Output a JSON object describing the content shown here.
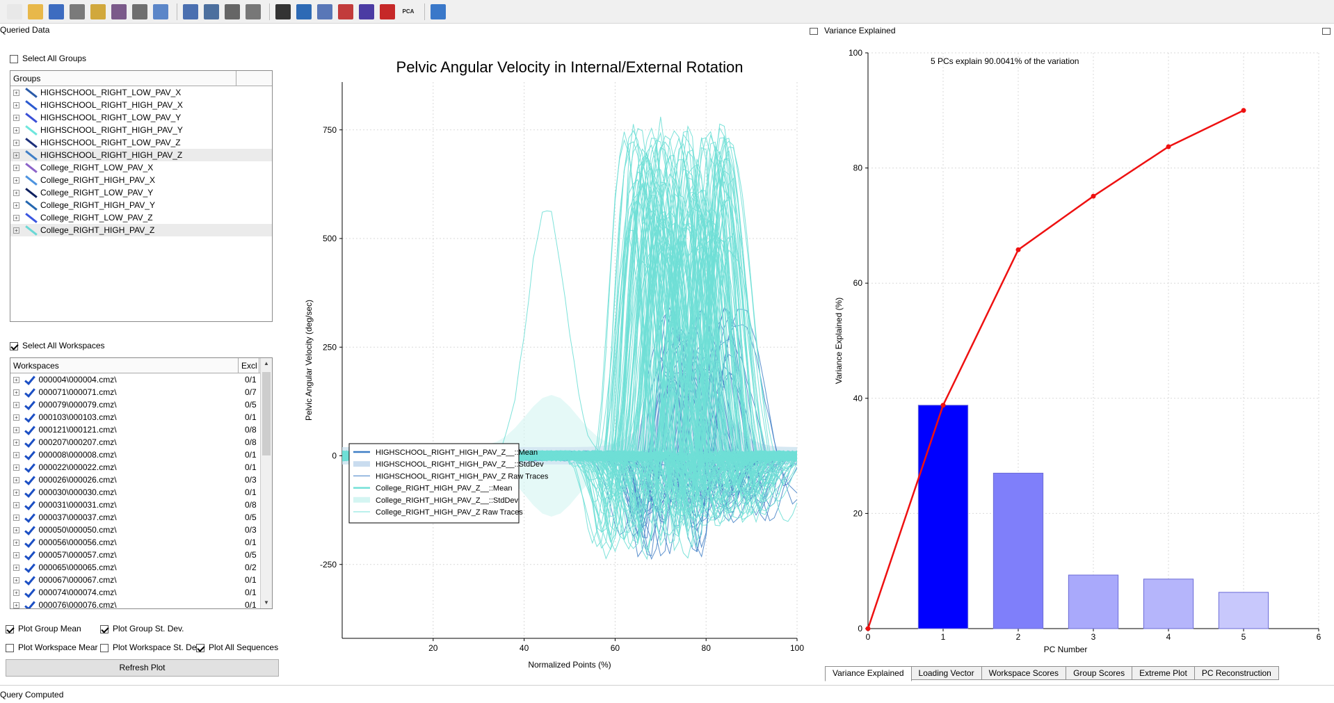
{
  "toolbar": {
    "buttons": [
      {
        "name": "new-file-icon",
        "color": "#e8e8e8"
      },
      {
        "name": "open-folder-icon",
        "color": "#e8b84a"
      },
      {
        "name": "save-icon",
        "color": "#3d6cc0"
      },
      {
        "name": "save-as-icon",
        "color": "#7a7a7a"
      },
      {
        "name": "ruler-icon",
        "color": "#d1a83c"
      },
      {
        "name": "cmo-icon",
        "color": "#7b5a8a"
      },
      {
        "name": "export-icon",
        "color": "#6f6f6f"
      },
      {
        "name": "window-icon",
        "color": "#5b86c8"
      },
      {
        "name": "txt-icon",
        "color": "#4a6fb0"
      },
      {
        "name": "save-data-icon",
        "color": "#4c6f9e"
      },
      {
        "name": "refresh-icon",
        "color": "#666666"
      },
      {
        "name": "curve-icon",
        "color": "#777777"
      },
      {
        "name": "runner-icon",
        "color": "#333333"
      },
      {
        "name": "movie-icon",
        "color": "#2d6ab5"
      },
      {
        "name": "signal-icon",
        "color": "#5977b7"
      },
      {
        "name": "crosshair-icon",
        "color": "#c23b3b"
      },
      {
        "name": "bell-curve-icon",
        "color": "#4b3ba3"
      },
      {
        "name": "no-entry-icon",
        "color": "#c62828"
      },
      {
        "name": "pca-icon",
        "color": "#444444"
      },
      {
        "name": "help-icon",
        "color": "#3a78c9"
      }
    ],
    "pca_label": "PCA"
  },
  "left": {
    "title": "Queried Data",
    "select_all_groups": "Select All Groups",
    "groups_header": "Groups",
    "groups": [
      {
        "label": "HIGHSCHOOL_RIGHT_LOW_PAV_X",
        "color": "#2a5aa8"
      },
      {
        "label": "HIGHSCHOOL_RIGHT_HIGH_PAV_X",
        "color": "#2b5ad0"
      },
      {
        "label": "HIGHSCHOOL_RIGHT_LOW_PAV_Y",
        "color": "#3a4fd6"
      },
      {
        "label": "HIGHSCHOOL_RIGHT_HIGH_PAV_Y",
        "color": "#6ee6dd"
      },
      {
        "label": "HIGHSCHOOL_RIGHT_LOW_PAV_Z",
        "color": "#1b2f7a"
      },
      {
        "label": "HIGHSCHOOL_RIGHT_HIGH_PAV_Z",
        "color": "#3f7ec6"
      },
      {
        "label": "College_RIGHT_LOW_PAV_X",
        "color": "#8c63c9"
      },
      {
        "label": "College_RIGHT_HIGH_PAV_X",
        "color": "#4d93df"
      },
      {
        "label": "College_RIGHT_LOW_PAV_Y",
        "color": "#0d1f5f"
      },
      {
        "label": "College_RIGHT_HIGH_PAV_Y",
        "color": "#2467b0"
      },
      {
        "label": "College_RIGHT_LOW_PAV_Z",
        "color": "#3a55e0"
      },
      {
        "label": "College_RIGHT_HIGH_PAV_Z",
        "color": "#6ad8d6"
      }
    ],
    "select_all_workspaces": "Select All Workspaces",
    "workspaces_header": "Workspaces",
    "excl_header": "Excl",
    "workspaces": [
      {
        "name": "000004\\000004.cmz\\",
        "excl": "0/1"
      },
      {
        "name": "000071\\000071.cmz\\",
        "excl": "0/7"
      },
      {
        "name": "000079\\000079.cmz\\",
        "excl": "0/5"
      },
      {
        "name": "000103\\000103.cmz\\",
        "excl": "0/1"
      },
      {
        "name": "000121\\000121.cmz\\",
        "excl": "0/8"
      },
      {
        "name": "000207\\000207.cmz\\",
        "excl": "0/8"
      },
      {
        "name": "000008\\000008.cmz\\",
        "excl": "0/1"
      },
      {
        "name": "000022\\000022.cmz\\",
        "excl": "0/1"
      },
      {
        "name": "000026\\000026.cmz\\",
        "excl": "0/3"
      },
      {
        "name": "000030\\000030.cmz\\",
        "excl": "0/1"
      },
      {
        "name": "000031\\000031.cmz\\",
        "excl": "0/8"
      },
      {
        "name": "000037\\000037.cmz\\",
        "excl": "0/5"
      },
      {
        "name": "000050\\000050.cmz\\",
        "excl": "0/3"
      },
      {
        "name": "000056\\000056.cmz\\",
        "excl": "0/1"
      },
      {
        "name": "000057\\000057.cmz\\",
        "excl": "0/5"
      },
      {
        "name": "000065\\000065.cmz\\",
        "excl": "0/2"
      },
      {
        "name": "000067\\000067.cmz\\",
        "excl": "0/1"
      },
      {
        "name": "000074\\000074.cmz\\",
        "excl": "0/1"
      },
      {
        "name": "000076\\000076.cmz\\",
        "excl": "0/1"
      }
    ],
    "plot_group_mean": "Plot Group Mean",
    "plot_group_std": "Plot Group St. Dev.",
    "plot_workspace_mean": "Plot Workspace Mear",
    "plot_workspace_std": "Plot Workspace St. De",
    "plot_all_sequences": "Plot All Sequences",
    "refresh": "Refresh Plot"
  },
  "status": "Query Computed",
  "right": {
    "title": "Variance Explained",
    "tabs": [
      "Variance Explained",
      "Loading Vector",
      "Workspace Scores",
      "Group Scores",
      "Extreme Plot",
      "PC Reconstruction"
    ]
  },
  "chart_data": [
    {
      "type": "line",
      "title": "Pelvic Angular Velocity in Internal/External Rotation",
      "xlabel": "Normalized Points (%)",
      "ylabel": "Pelvic Angular Velocity (deg/sec)",
      "xlim": [
        0,
        100
      ],
      "ylim": [
        -420,
        860
      ],
      "xticks": [
        20,
        40,
        60,
        80,
        100
      ],
      "yticks": [
        -250,
        0,
        250,
        500,
        750
      ],
      "grid": true,
      "legend_position": "bottom-left",
      "legend": [
        {
          "name": "HIGHSCHOOL_RIGHT_HIGH_PAV_Z__::Mean",
          "style": "line",
          "color": "#3f7ec6"
        },
        {
          "name": "HIGHSCHOOL_RIGHT_HIGH_PAV_Z__::StdDev",
          "style": "band",
          "color": "#c9dcef"
        },
        {
          "name": "HIGHSCHOOL_RIGHT_HIGH_PAV_Z Raw Traces",
          "style": "thin",
          "color": "#3f7ec6"
        },
        {
          "name": "College_RIGHT_HIGH_PAV_Z__::Mean",
          "style": "line",
          "color": "#74e0d8"
        },
        {
          "name": "College_RIGHT_HIGH_PAV_Z__::StdDev",
          "style": "band",
          "color": "#d4f5f2"
        },
        {
          "name": "College_RIGHT_HIGH_PAV_Z Raw Traces",
          "style": "thin",
          "color": "#74e0d8"
        }
      ],
      "colors": {
        "highschool": "#3f7ec6",
        "college": "#6fdfd6"
      }
    },
    {
      "type": "bar",
      "annotation": "5 PCs explain 90.0041% of the variation",
      "xlabel": "PC Number",
      "ylabel": "Variance Explained (%)",
      "xlim": [
        0,
        6
      ],
      "ylim": [
        0,
        100
      ],
      "xticks": [
        0,
        1,
        2,
        3,
        4,
        5,
        6
      ],
      "yticks": [
        0,
        20,
        40,
        60,
        80,
        100
      ],
      "grid": true,
      "categories": [
        1,
        2,
        3,
        4,
        5
      ],
      "values": [
        38.8,
        27.0,
        9.3,
        8.6,
        6.3
      ],
      "bar_colors": [
        "#0000ff",
        "#7f7ffa",
        "#a9a9fb",
        "#b5b5fb",
        "#c8c8fc"
      ],
      "cumulative": {
        "x": [
          0,
          1,
          2,
          3,
          4,
          5
        ],
        "y": [
          0,
          38.8,
          65.8,
          75.1,
          83.7,
          90.0
        ],
        "color": "#ee1111"
      }
    }
  ]
}
